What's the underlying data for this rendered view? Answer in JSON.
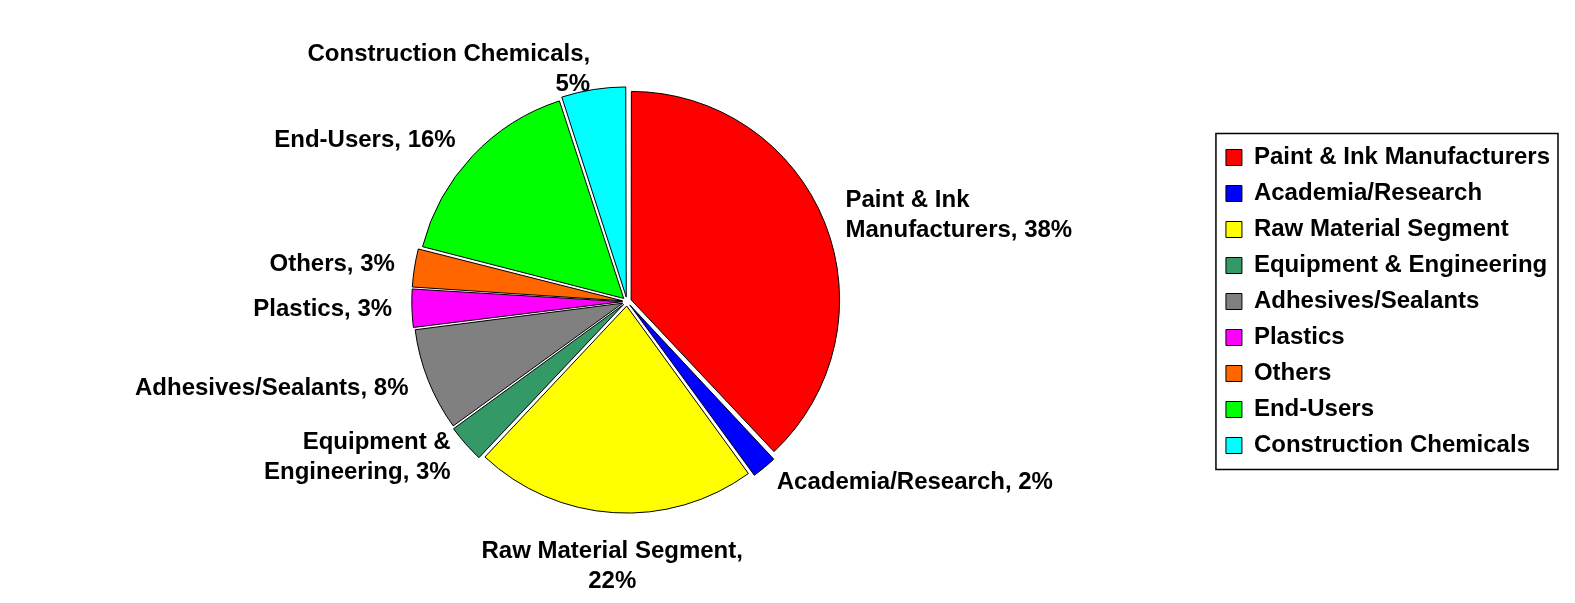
{
  "chart_data": {
    "type": "pie",
    "categories": [
      "Paint & Ink Manufacturers",
      "Academia/Research",
      "Raw Material Segment",
      "Equipment & Engineering",
      "Adhesives/Sealants",
      "Plastics",
      "Others",
      "End-Users",
      "Construction Chemicals"
    ],
    "values": [
      38,
      2,
      22,
      3,
      8,
      3,
      3,
      16,
      5
    ],
    "value_labels": [
      "Paint & Ink Manufacturers, 38%",
      "Academia/Research, 2%",
      "Raw Material Segment, 22%",
      "Equipment & Engineering, 3%",
      "Adhesives/Sealants, 8%",
      "Plastics, 3%",
      "Others, 3%",
      "End-Users, 16%",
      "Construction Chemicals, 5%"
    ],
    "colors": [
      "#ff0000",
      "#0000ff",
      "#ffff00",
      "#339966",
      "#808080",
      "#ff00ff",
      "#ff6600",
      "#00ff00",
      "#00ffff"
    ],
    "legend": "right"
  }
}
